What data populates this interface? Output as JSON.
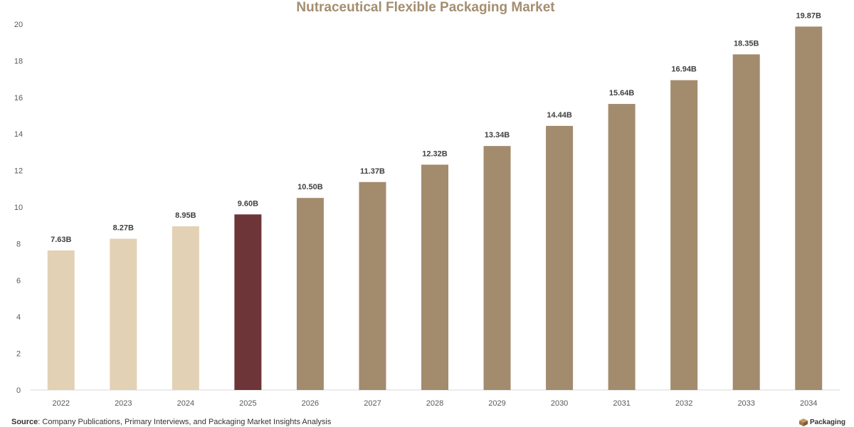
{
  "chart_data": {
    "type": "bar",
    "title": "Nutraceutical Flexible Packaging Market",
    "xlabel": "",
    "ylabel": "",
    "ylim": [
      0,
      20
    ],
    "yticks": [
      "0",
      "2",
      "4",
      "6",
      "8",
      "10",
      "12",
      "14",
      "16",
      "18",
      "20"
    ],
    "grid": false,
    "categories": [
      "2022",
      "2023",
      "2024",
      "2025",
      "2026",
      "2027",
      "2028",
      "2029",
      "2030",
      "2031",
      "2032",
      "2033",
      "2034"
    ],
    "values": [
      7.63,
      8.27,
      8.95,
      9.6,
      10.5,
      11.37,
      12.32,
      13.34,
      14.44,
      15.64,
      16.94,
      18.35,
      19.87
    ],
    "value_labels": [
      "7.63B",
      "8.27B",
      "8.95B",
      "9.60B",
      "10.50B",
      "11.37B",
      "12.32B",
      "13.34B",
      "14.44B",
      "15.64B",
      "16.94B",
      "18.35B",
      "19.87B"
    ],
    "bar_colors": [
      "#e3d1b5",
      "#e3d1b5",
      "#e3d1b5",
      "#6e3538",
      "#a38b6d",
      "#a38b6d",
      "#a38b6d",
      "#a38b6d",
      "#a38b6d",
      "#a38b6d",
      "#a38b6d",
      "#a38b6d",
      "#a38b6d"
    ]
  },
  "source": {
    "label": "Source",
    "text": ": Company Publications, Primary Interviews, and Packaging Market Insights Analysis"
  },
  "brand": {
    "text": "Packaging",
    "icon": "box-icon",
    "icon_color": "#a0784a"
  }
}
